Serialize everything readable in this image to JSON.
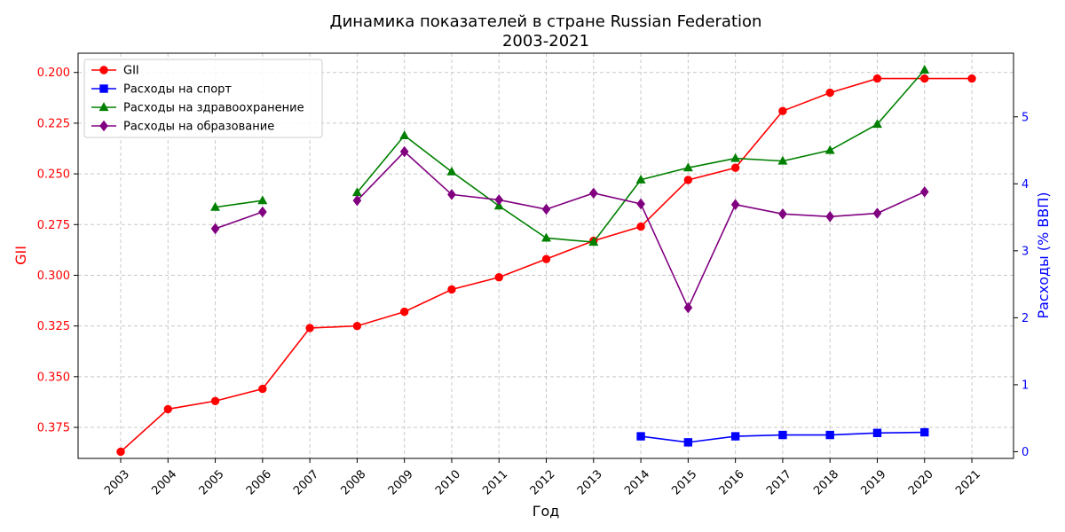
{
  "chart_data": {
    "type": "line",
    "title": "Динамика показателей в стране Russian Federation",
    "subtitle": "2003-2021",
    "xlabel": "Год",
    "ylabel_left": "GII",
    "ylabel_right": "Расходы (% ВВП)",
    "left_axis_inverted": true,
    "ylim_left": [
      0.1905,
      0.3903
    ],
    "ylim_right": [
      -0.1,
      5.95
    ],
    "left_ticks": [
      "0.200",
      "0.225",
      "0.250",
      "0.275",
      "0.300",
      "0.325",
      "0.350",
      "0.375"
    ],
    "right_ticks": [
      "0",
      "1",
      "2",
      "3",
      "4",
      "5"
    ],
    "grid": true,
    "legend_position": "top-left",
    "x": [
      "2003",
      "2004",
      "2005",
      "2006",
      "2007",
      "2008",
      "2009",
      "2010",
      "2011",
      "2012",
      "2013",
      "2014",
      "2015",
      "2016",
      "2017",
      "2018",
      "2019",
      "2020",
      "2021"
    ],
    "series": [
      {
        "name": "GII",
        "axis": "left",
        "color": "#ff0000",
        "marker": "circle",
        "values": [
          0.387,
          0.366,
          0.362,
          0.356,
          0.326,
          0.325,
          0.318,
          0.307,
          0.301,
          0.292,
          0.283,
          0.276,
          0.253,
          0.247,
          0.219,
          0.21,
          0.203,
          0.203,
          0.203
        ]
      },
      {
        "name": "Расходы на спорт",
        "axis": "right",
        "color": "#0000ff",
        "marker": "square",
        "values": [
          null,
          null,
          null,
          null,
          null,
          null,
          null,
          null,
          null,
          null,
          null,
          0.23,
          0.14,
          0.23,
          0.25,
          0.25,
          0.28,
          0.29,
          null
        ]
      },
      {
        "name": "Расходы на здравоохранение",
        "axis": "right",
        "color": "#008000",
        "marker": "triangle",
        "values": [
          null,
          null,
          3.65,
          3.75,
          null,
          3.87,
          4.72,
          4.18,
          3.67,
          3.19,
          3.13,
          4.06,
          4.24,
          4.38,
          4.34,
          4.5,
          4.89,
          5.7,
          null
        ]
      },
      {
        "name": "Расходы на образование",
        "axis": "right",
        "color": "#800080",
        "marker": "diamond",
        "values": [
          null,
          null,
          3.33,
          3.58,
          null,
          3.75,
          4.48,
          3.84,
          3.76,
          3.62,
          3.86,
          3.7,
          2.15,
          3.69,
          3.55,
          3.51,
          3.56,
          3.88,
          null
        ]
      }
    ]
  }
}
